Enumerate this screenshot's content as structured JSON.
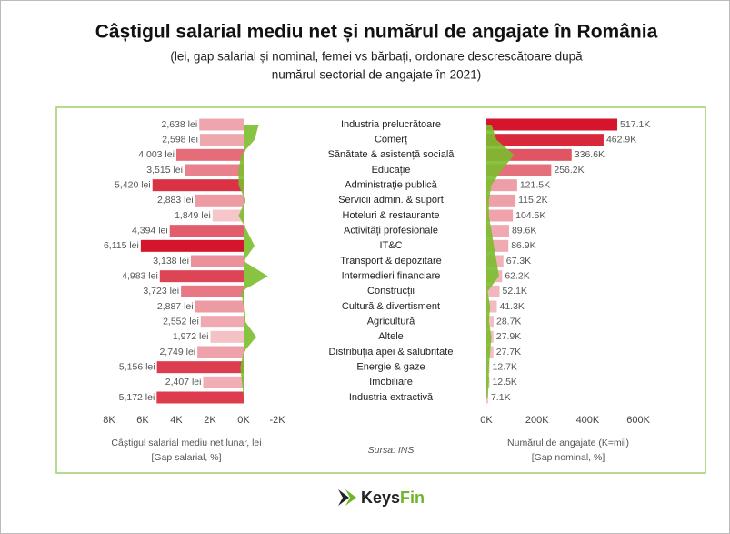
{
  "header": {
    "title": "Câștigul salarial mediu net și numărul de angajate în România",
    "subtitle": [
      "(lei, gap salarial și nominal, femei vs bărbați, ordonare descrescătoare după",
      "numărul sectorial de angajate în 2021)"
    ]
  },
  "chart_data": [
    {
      "type": "bar",
      "orientation": "horizontal",
      "categories": [
        "Industria prelucrătoare",
        "Comerț",
        "Sănătate & asistență socială",
        "Educație",
        "Administrație publică",
        "Servicii admin. & suport",
        "Hoteluri & restaurante",
        "Activități profesionale",
        "IT&C",
        "Transport & depozitare",
        "Intermedieri financiare",
        "Construcții",
        "Cultură & divertisment",
        "Agricultură",
        "Altele",
        "Distribuția apei & salubritate",
        "Energie & gaze",
        "Imobiliare",
        "Industria extractivă"
      ],
      "series": [
        {
          "type": "bar",
          "values": [
            2638,
            2598,
            4003,
            3515,
            5420,
            2883,
            1849,
            4394,
            6115,
            3138,
            4983,
            3723,
            2887,
            2552,
            1972,
            2749,
            5156,
            2407,
            5172
          ],
          "value_labels": [
            "2,638 lei",
            "2,598 lei",
            "4,003 lei",
            "3,515 lei",
            "5,420 lei",
            "2,883 lei",
            "1,849 lei",
            "4,394 lei",
            "6,115 lei",
            "3,138 lei",
            "4,983 lei",
            "3,723 lei",
            "2,887 lei",
            "2,552 lei",
            "1,972 lei",
            "2,749 lei",
            "5,156 lei",
            "2,407 lei",
            "5,172 lei"
          ],
          "color_scale": [
            "#f5c6ca",
            "#d5152b"
          ]
        },
        {
          "type": "area",
          "color": "#7cbc2e",
          "values": [
            -900,
            -650,
            150,
            300,
            300,
            -100,
            300,
            -200,
            -650,
            0,
            -1450,
            150,
            0,
            -100,
            -750,
            0,
            200,
            100,
            0
          ]
        }
      ],
      "xlim": [
        8000,
        -2000
      ],
      "xticks": [
        {
          "value": 8000,
          "label": "8K"
        },
        {
          "value": 6000,
          "label": "6K"
        },
        {
          "value": 4000,
          "label": "4K"
        },
        {
          "value": 2000,
          "label": "2K"
        },
        {
          "value": 0,
          "label": "0K"
        },
        {
          "value": -2000,
          "label": "-2K"
        }
      ],
      "xlabel": [
        "Câștigul salarial mediu net lunar, lei",
        "[Gap salarial, %]"
      ]
    },
    {
      "type": "bar",
      "orientation": "horizontal",
      "series": [
        {
          "type": "bar",
          "values": [
            517100,
            462900,
            336600,
            256200,
            121500,
            115200,
            104500,
            89600,
            86900,
            67300,
            62200,
            52100,
            41300,
            28700,
            27900,
            27700,
            12700,
            12500,
            7100
          ],
          "value_labels": [
            "517.1K",
            "462.9K",
            "336.6K",
            "256.2K",
            "121.5K",
            "115.2K",
            "104.5K",
            "89.6K",
            "86.9K",
            "67.3K",
            "62.2K",
            "52.1K",
            "41.3K",
            "28.7K",
            "27.9K",
            "27.7K",
            "12.7K",
            "12.5K",
            "7.1K"
          ],
          "color_scale": [
            "#f5c6ca",
            "#d5152b"
          ]
        },
        {
          "type": "area",
          "color": "#7cbc2e",
          "values": [
            20000,
            40000,
            110000,
            60000,
            20000,
            10000,
            10000,
            20000,
            30000,
            40000,
            50000,
            5000,
            15000,
            10000,
            20000,
            15000,
            10000,
            10000,
            5000
          ]
        }
      ],
      "xlim": [
        0,
        700000
      ],
      "xticks": [
        {
          "value": 0,
          "label": "0K"
        },
        {
          "value": 200000,
          "label": "200K"
        },
        {
          "value": 400000,
          "label": "400K"
        },
        {
          "value": 600000,
          "label": "600K"
        }
      ],
      "xlabel": [
        "Numărul de angajate (K=mii)",
        "[Gap nominal, %]"
      ]
    }
  ],
  "footer": {
    "source": "Sursa: INS",
    "logo": [
      "Keys",
      "Fin"
    ]
  }
}
